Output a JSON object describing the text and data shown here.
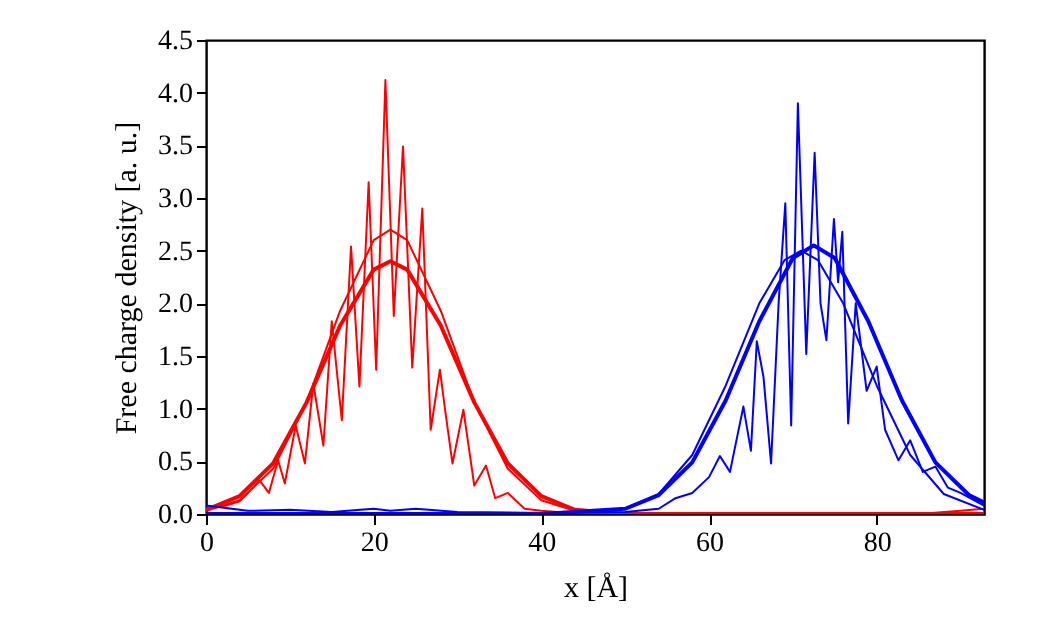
{
  "chart_data": {
    "type": "line",
    "xlabel": "x [Å]",
    "ylabel": "Free charge density [a. u.]",
    "xlim": [
      0,
      92.8
    ],
    "ylim": [
      0,
      4.5
    ],
    "xticks": [
      0,
      20,
      40,
      60,
      80
    ],
    "yticks": [
      {
        "value": 0,
        "label": "0.0"
      },
      {
        "value": 0.5,
        "label": "0.5"
      },
      {
        "value": 1,
        "label": "1.0"
      },
      {
        "value": 1.5,
        "label": "1.5"
      },
      {
        "value": 2,
        "label": "2.0"
      },
      {
        "value": 2.5,
        "label": "2.5"
      },
      {
        "value": 3,
        "label": "3.0"
      },
      {
        "value": 3.5,
        "label": "3.5"
      },
      {
        "value": 4,
        "label": "4.0"
      },
      {
        "value": 4.5,
        "label": "4.5"
      }
    ],
    "grid": false,
    "series": [
      {
        "color": "#ff0000",
        "x": [
          0,
          2,
          4,
          5,
          6.4,
          7.5,
          8.6,
          9.4,
          10.7,
          11.8,
          12.8,
          14.0,
          15.0,
          16.2,
          17.3,
          18.3,
          19.4,
          20.3,
          21.4,
          22.4,
          23.5,
          24.6,
          25.8,
          26.8,
          27.9,
          28.5,
          29.4,
          30.7,
          32,
          33.4,
          34.5,
          36,
          38,
          40,
          45,
          60,
          85,
          90,
          92.8
        ],
        "values": [
          0.05,
          0.07,
          0.12,
          0.2,
          0.32,
          0.2,
          0.51,
          0.29,
          0.84,
          0.48,
          1.24,
          0.65,
          1.83,
          0.89,
          2.54,
          1.21,
          3.15,
          1.37,
          4.12,
          1.88,
          3.49,
          1.39,
          2.9,
          0.8,
          1.37,
          1.0,
          0.48,
          0.99,
          0.27,
          0.46,
          0.15,
          0.2,
          0.05,
          0.03,
          0,
          0,
          0,
          0.03,
          0.05
        ]
      },
      {
        "color": "#ff0000",
        "x": [
          0,
          4,
          8,
          12,
          16,
          20,
          22,
          24,
          28,
          32,
          36,
          40,
          44,
          50,
          92.8
        ],
        "values": [
          0.03,
          0.13,
          0.43,
          1.06,
          1.93,
          2.6,
          2.7,
          2.6,
          1.93,
          1.06,
          0.43,
          0.13,
          0.03,
          0,
          0
        ]
      },
      {
        "color": "#ff0000",
        "x": [
          0,
          4,
          8,
          12,
          16,
          20,
          22,
          24,
          28,
          32,
          36,
          40,
          44,
          50,
          92.8
        ],
        "values": [
          0.04,
          0.17,
          0.48,
          1.06,
          1.79,
          2.32,
          2.4,
          2.32,
          1.79,
          1.06,
          0.48,
          0.17,
          0.04,
          0,
          0
        ]
      },
      {
        "color": "#0000ff",
        "x": [
          0,
          5,
          10,
          15,
          20,
          22,
          25,
          30,
          40,
          50,
          54,
          56,
          58,
          60,
          61.3,
          62.5,
          64.1,
          65,
          65.7,
          66.5,
          67.4,
          68.3,
          69.1,
          69.8,
          70.6,
          71.6,
          72.6,
          73.3,
          74,
          74.9,
          75.4,
          75.9,
          76.6,
          77.5,
          78.8,
          80,
          81,
          82.6,
          84,
          85.5,
          87,
          88.5,
          90,
          92.8
        ],
        "values": [
          0.08,
          0.03,
          0.04,
          0.02,
          0.05,
          0.03,
          0.05,
          0.02,
          0.01,
          0.02,
          0.05,
          0.15,
          0.2,
          0.35,
          0.55,
          0.4,
          1.02,
          0.6,
          1.64,
          1.3,
          0.48,
          2.0,
          2.95,
          0.84,
          3.9,
          1.52,
          3.43,
          2.0,
          1.65,
          2.8,
          2.2,
          2.68,
          0.86,
          2.0,
          1.17,
          1.4,
          0.8,
          0.51,
          0.7,
          0.4,
          0.45,
          0.25,
          0.2,
          0.08
        ]
      },
      {
        "color": "#0000ff",
        "x": [
          0,
          40,
          50,
          54,
          58,
          62,
          66,
          69,
          71,
          73,
          76,
          80,
          84,
          88,
          92.8
        ],
        "values": [
          0,
          0,
          0.05,
          0.19,
          0.56,
          1.22,
          2.0,
          2.41,
          2.5,
          2.41,
          2.0,
          1.22,
          0.56,
          0.19,
          0.04
        ]
      },
      {
        "color": "#0000ff",
        "x": [
          0,
          40,
          50,
          54,
          58,
          62,
          66,
          70,
          72.5,
          75,
          79,
          83,
          87,
          91,
          92.8
        ],
        "values": [
          0,
          0,
          0.05,
          0.18,
          0.49,
          1.08,
          1.83,
          2.43,
          2.55,
          2.43,
          1.83,
          1.08,
          0.49,
          0.18,
          0.11
        ]
      }
    ]
  }
}
